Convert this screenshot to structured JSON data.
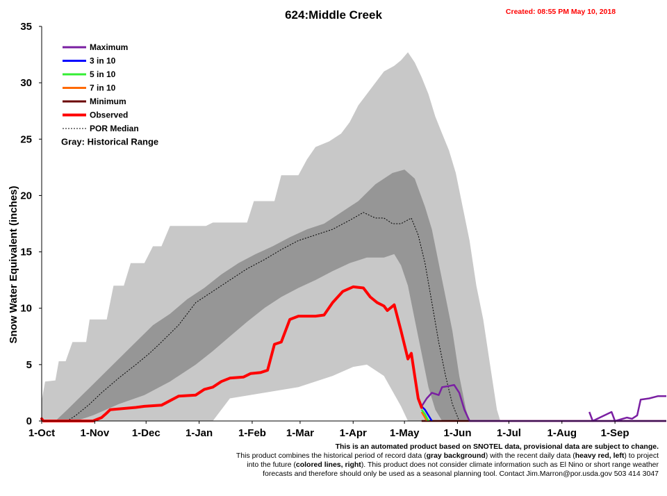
{
  "chart_data": {
    "type": "area",
    "title": "624:Middle Creek",
    "created": "Created: 08:55 PM May 10, 2018",
    "ylabel": "Snow Water Equivalent (inches)",
    "xlabel": "",
    "ylim": [
      0,
      35
    ],
    "yticks": [
      0,
      5,
      10,
      15,
      20,
      25,
      30,
      35
    ],
    "x_tick_labels": [
      "1-Oct",
      "1-Nov",
      "1-Dec",
      "1-Jan",
      "1-Feb",
      "1-Mar",
      "1-Apr",
      "1-May",
      "1-Jun",
      "1-Jul",
      "1-Aug",
      "1-Sep"
    ],
    "x_tick_days": [
      0,
      31,
      61,
      92,
      123,
      151,
      182,
      212,
      243,
      273,
      304,
      335
    ],
    "x_range_days": [
      0,
      365
    ],
    "grid": false,
    "legend_position": "top-left",
    "legend": [
      {
        "name": "Maximum",
        "color": "#7a1fa2",
        "style": "solid"
      },
      {
        "name": "3 in 10",
        "color": "#0000ff",
        "style": "solid"
      },
      {
        "name": "5 in 10",
        "color": "#33ee33",
        "style": "solid"
      },
      {
        "name": "7 in 10",
        "color": "#ff6a00",
        "style": "solid"
      },
      {
        "name": "Minimum",
        "color": "#6b0000",
        "style": "solid"
      },
      {
        "name": "Observed",
        "color": "#ff0000",
        "style": "thick"
      },
      {
        "name": "POR Median",
        "color": "#000000",
        "style": "dotted"
      }
    ],
    "range_note": "Gray: Historical Range",
    "colors": {
      "historical_range": "#c8c8c8",
      "inner_range": "#969696",
      "observed": "#ff0000",
      "median": "#000000",
      "maximum_forecast": "#7a1fa2",
      "minimum_forecast": "#6b0000"
    },
    "series": [
      {
        "name": "Historical Range (max)",
        "points": [
          [
            0,
            1.8
          ],
          [
            2,
            3.5
          ],
          [
            8,
            3.6
          ],
          [
            10,
            5.3
          ],
          [
            14,
            5.3
          ],
          [
            18,
            7
          ],
          [
            26,
            7
          ],
          [
            28,
            9
          ],
          [
            38,
            9
          ],
          [
            42,
            12
          ],
          [
            48,
            12
          ],
          [
            52,
            14
          ],
          [
            60,
            14
          ],
          [
            65,
            15.5
          ],
          [
            70,
            15.5
          ],
          [
            75,
            17.3
          ],
          [
            96,
            17.3
          ],
          [
            100,
            17.6
          ],
          [
            120,
            17.6
          ],
          [
            124,
            19.5
          ],
          [
            136,
            19.5
          ],
          [
            140,
            21.8
          ],
          [
            150,
            21.8
          ],
          [
            155,
            23.2
          ],
          [
            160,
            24.3
          ],
          [
            168,
            24.8
          ],
          [
            175,
            25.5
          ],
          [
            180,
            26.5
          ],
          [
            185,
            28
          ],
          [
            190,
            29
          ],
          [
            195,
            30
          ],
          [
            200,
            31
          ],
          [
            206,
            31.5
          ],
          [
            210,
            32
          ],
          [
            214,
            32.7
          ],
          [
            218,
            31.8
          ],
          [
            222,
            30.5
          ],
          [
            226,
            29
          ],
          [
            230,
            27
          ],
          [
            234,
            25.5
          ],
          [
            238,
            24
          ],
          [
            242,
            22
          ],
          [
            246,
            19
          ],
          [
            250,
            16
          ],
          [
            254,
            12
          ],
          [
            258,
            9
          ],
          [
            262,
            5
          ],
          [
            266,
            1
          ],
          [
            268,
            0
          ]
        ]
      },
      {
        "name": "Historical Range (min)",
        "points": [
          [
            0,
            0
          ],
          [
            100,
            0
          ],
          [
            105,
            1
          ],
          [
            110,
            2
          ],
          [
            130,
            2.5
          ],
          [
            150,
            3
          ],
          [
            170,
            4
          ],
          [
            182,
            4.8
          ],
          [
            190,
            5
          ],
          [
            200,
            4
          ],
          [
            210,
            1.3
          ],
          [
            214,
            0
          ]
        ]
      },
      {
        "name": "Inner Range (upper)",
        "points": [
          [
            0,
            0
          ],
          [
            8,
            0
          ],
          [
            15,
            1
          ],
          [
            25,
            2.5
          ],
          [
            35,
            4
          ],
          [
            45,
            5.5
          ],
          [
            55,
            7
          ],
          [
            65,
            8.5
          ],
          [
            75,
            9.5
          ],
          [
            85,
            10.8
          ],
          [
            95,
            11.8
          ],
          [
            105,
            13
          ],
          [
            115,
            14
          ],
          [
            125,
            14.8
          ],
          [
            135,
            15.5
          ],
          [
            145,
            16.3
          ],
          [
            155,
            17
          ],
          [
            165,
            17.5
          ],
          [
            175,
            18.5
          ],
          [
            185,
            19.5
          ],
          [
            195,
            21
          ],
          [
            205,
            22
          ],
          [
            212,
            22.3
          ],
          [
            218,
            21.5
          ],
          [
            224,
            19
          ],
          [
            228,
            17
          ],
          [
            232,
            14
          ],
          [
            236,
            11
          ],
          [
            240,
            8
          ],
          [
            244,
            4
          ],
          [
            248,
            1
          ],
          [
            250,
            0
          ]
        ]
      },
      {
        "name": "Inner Range (lower)",
        "points": [
          [
            0,
            0
          ],
          [
            20,
            0
          ],
          [
            30,
            0.5
          ],
          [
            45,
            1.5
          ],
          [
            60,
            2.3
          ],
          [
            75,
            3.5
          ],
          [
            90,
            5
          ],
          [
            100,
            6.2
          ],
          [
            110,
            7.5
          ],
          [
            120,
            8.8
          ],
          [
            130,
            10
          ],
          [
            140,
            11
          ],
          [
            150,
            11.8
          ],
          [
            160,
            12.5
          ],
          [
            170,
            13.3
          ],
          [
            180,
            14
          ],
          [
            190,
            14.5
          ],
          [
            200,
            14.5
          ],
          [
            206,
            14.8
          ],
          [
            210,
            13.8
          ],
          [
            214,
            12
          ],
          [
            218,
            9
          ],
          [
            222,
            6
          ],
          [
            226,
            3
          ],
          [
            230,
            1
          ],
          [
            234,
            0
          ]
        ]
      },
      {
        "name": "POR Median",
        "points": [
          [
            0,
            0
          ],
          [
            15,
            0
          ],
          [
            20,
            0.5
          ],
          [
            28,
            1.5
          ],
          [
            35,
            2.5
          ],
          [
            45,
            3.8
          ],
          [
            55,
            5
          ],
          [
            63,
            6
          ],
          [
            70,
            7
          ],
          [
            80,
            8.5
          ],
          [
            90,
            10.5
          ],
          [
            100,
            11.5
          ],
          [
            110,
            12.5
          ],
          [
            120,
            13.5
          ],
          [
            130,
            14.3
          ],
          [
            140,
            15.2
          ],
          [
            150,
            16
          ],
          [
            160,
            16.5
          ],
          [
            170,
            17
          ],
          [
            180,
            17.8
          ],
          [
            188,
            18.5
          ],
          [
            195,
            18
          ],
          [
            200,
            18
          ],
          [
            205,
            17.5
          ],
          [
            210,
            17.5
          ],
          [
            216,
            18
          ],
          [
            220,
            16.5
          ],
          [
            224,
            14
          ],
          [
            228,
            10.5
          ],
          [
            232,
            7
          ],
          [
            236,
            4
          ],
          [
            240,
            1.5
          ],
          [
            244,
            0
          ]
        ]
      },
      {
        "name": "Observed",
        "points": [
          [
            0,
            0.2
          ],
          [
            1,
            0
          ],
          [
            30,
            0
          ],
          [
            35,
            0.3
          ],
          [
            38,
            0.7
          ],
          [
            40,
            1
          ],
          [
            55,
            1.2
          ],
          [
            60,
            1.3
          ],
          [
            70,
            1.4
          ],
          [
            75,
            1.8
          ],
          [
            80,
            2.2
          ],
          [
            90,
            2.3
          ],
          [
            95,
            2.8
          ],
          [
            100,
            3
          ],
          [
            105,
            3.5
          ],
          [
            110,
            3.8
          ],
          [
            118,
            3.9
          ],
          [
            122,
            4.2
          ],
          [
            128,
            4.3
          ],
          [
            132,
            4.5
          ],
          [
            136,
            6.8
          ],
          [
            140,
            7
          ],
          [
            145,
            9
          ],
          [
            150,
            9.3
          ],
          [
            155,
            9.3
          ],
          [
            160,
            9.3
          ],
          [
            165,
            9.4
          ],
          [
            170,
            10.5
          ],
          [
            176,
            11.5
          ],
          [
            182,
            11.9
          ],
          [
            188,
            11.8
          ],
          [
            192,
            11
          ],
          [
            196,
            10.5
          ],
          [
            200,
            10.2
          ],
          [
            202,
            9.8
          ],
          [
            206,
            10.3
          ],
          [
            210,
            8
          ],
          [
            214,
            5.5
          ],
          [
            216,
            6
          ],
          [
            218,
            4
          ],
          [
            220,
            2
          ],
          [
            222,
            1.2
          ]
        ]
      },
      {
        "name": "Maximum",
        "points": [
          [
            222,
            1.3
          ],
          [
            225,
            2
          ],
          [
            228,
            2.5
          ],
          [
            232,
            2.3
          ],
          [
            234,
            3
          ],
          [
            238,
            3.1
          ],
          [
            241,
            3.2
          ],
          [
            244,
            2.5
          ],
          [
            247,
            1
          ],
          [
            250,
            0
          ],
          [
            365,
            0
          ]
        ],
        "extra_blips": [
          [
            320,
            0.8
          ],
          [
            322,
            0
          ],
          [
            333,
            0.8
          ],
          [
            335,
            0
          ],
          [
            342,
            0.3
          ],
          [
            345,
            0.2
          ],
          [
            348,
            0.5
          ],
          [
            350,
            1.9
          ],
          [
            355,
            2
          ],
          [
            360,
            2.2
          ],
          [
            365,
            2.2
          ]
        ]
      },
      {
        "name": "3 in 10",
        "points": [
          [
            222,
            1.3
          ],
          [
            224,
            1.0
          ],
          [
            226,
            0.5
          ],
          [
            228,
            0
          ]
        ]
      },
      {
        "name": "5 in 10",
        "points": [
          [
            222,
            1.0
          ],
          [
            224,
            0.6
          ],
          [
            226,
            0
          ]
        ]
      },
      {
        "name": "7 in 10",
        "points": [
          [
            222,
            0.8
          ],
          [
            224,
            0.3
          ],
          [
            225,
            0
          ]
        ]
      },
      {
        "name": "Minimum",
        "points": [
          [
            222,
            0
          ],
          [
            365,
            0
          ]
        ]
      }
    ]
  },
  "notes": {
    "line1": "This is an automated product based on SNOTEL data, provisional data are subject to change.",
    "line2_a": "This product combines the historical period of record data (",
    "line2_b": "gray background",
    "line2_c": ") with the recent daily data (",
    "line2_d": "heavy red, left",
    "line2_e": ") to project",
    "line3_a": "into the future (",
    "line3_b": "colored lines, right",
    "line3_c": "). This product does not consider climate information such as El Nino or short range weather",
    "line4": "forecasts and therefore should only be used as a seasonal planning tool. Contact Jim.Marron@por.usda.gov 503 414 3047"
  }
}
